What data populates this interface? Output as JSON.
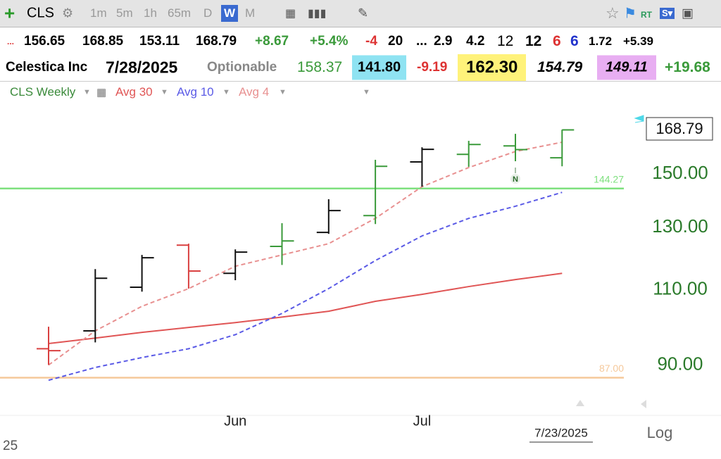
{
  "toolbar": {
    "symbol": "CLS",
    "intervals": [
      "1m",
      "5m",
      "1h",
      "65m",
      "D",
      "W",
      "M"
    ],
    "rt": "RT"
  },
  "quote_row": [
    "...",
    "156.65",
    "168.85",
    "153.11",
    "168.79",
    "+8.67",
    "+5.4%",
    "-4",
    "20",
    "...",
    "2.9",
    "4.2",
    "12",
    "12",
    "6",
    "6",
    "1.72",
    "+5.39"
  ],
  "info_row": [
    "Celestica Inc",
    "7/28/2025",
    "Optionable",
    "158.37",
    "141.80",
    "-9.19",
    "162.30",
    "154.79",
    "149.11",
    "+19.68"
  ],
  "chart_data": {
    "type": "ohlc",
    "title": "CLS Weekly",
    "categories": [
      null,
      null,
      null,
      null,
      "Jun",
      null,
      null,
      null,
      "Jul",
      null,
      null,
      null
    ],
    "open": [
      94.0,
      98.6,
      110.8,
      124.0,
      115.0,
      123.6,
      128.3,
      134.2,
      154.9,
      158.1,
      161.7,
      156.65
    ],
    "high": [
      99.7,
      116.3,
      120.8,
      124.5,
      122.6,
      131.5,
      140.2,
      155.8,
      161.1,
      163.9,
      167.0,
      168.85
    ],
    "low": [
      90.0,
      95.6,
      109.5,
      110.4,
      112.9,
      117.6,
      127.8,
      131.2,
      145.0,
      152.9,
      155.2,
      153.11
    ],
    "close": [
      93.5,
      113.5,
      119.9,
      115.7,
      121.7,
      125.4,
      136.0,
      153.1,
      160.2,
      162.3,
      160.12,
      168.79
    ],
    "bar_colors": [
      "#d94040",
      "#111111",
      "#111111",
      "#d94040",
      "#111111",
      "#3a9a3a",
      "#111111",
      "#3a9a3a",
      "#111111",
      "#3a9a3a",
      "#3a9a3a",
      "#3a9a3a"
    ],
    "series": [
      {
        "name": "Avg 30",
        "color": "#e05555",
        "dashed": false,
        "values": [
          95.3,
          96.7,
          98.2,
          99.5,
          100.8,
          102.3,
          103.9,
          106.7,
          108.7,
          111.0,
          113.1,
          115.0
        ]
      },
      {
        "name": "Avg 10",
        "color": "#5a5ae6",
        "dashed": true,
        "values": [
          86.4,
          89.4,
          91.8,
          94.0,
          97.6,
          103.3,
          110.4,
          119.0,
          127.1,
          133.2,
          137.6,
          142.8
        ]
      },
      {
        "name": "Avg 4",
        "color": "#e89090",
        "dashed": true,
        "values": [
          90.0,
          98.6,
          105.3,
          110.4,
          117.2,
          120.8,
          124.5,
          133.2,
          145.0,
          152.6,
          159.3,
          163.3
        ]
      }
    ],
    "hlines": [
      {
        "value": 144.27,
        "label": "144.27",
        "color": "#7ee07e"
      },
      {
        "value": 87,
        "label": "87.00",
        "color": "#f5c89a"
      }
    ],
    "ylim": [
      79.4,
      181.8
    ],
    "log_scale": true,
    "yticks": [
      {
        "value": 90,
        "label": "90.00"
      },
      {
        "value": 110,
        "label": "110.00"
      },
      {
        "value": 130,
        "label": "130.00"
      },
      {
        "value": 150,
        "label": "150.00"
      }
    ],
    "annotations": [
      {
        "text": "N",
        "index": 10
      }
    ],
    "cursor_date": "7/23/2025",
    "scale_button": "Log",
    "axis_fragment": "25"
  }
}
